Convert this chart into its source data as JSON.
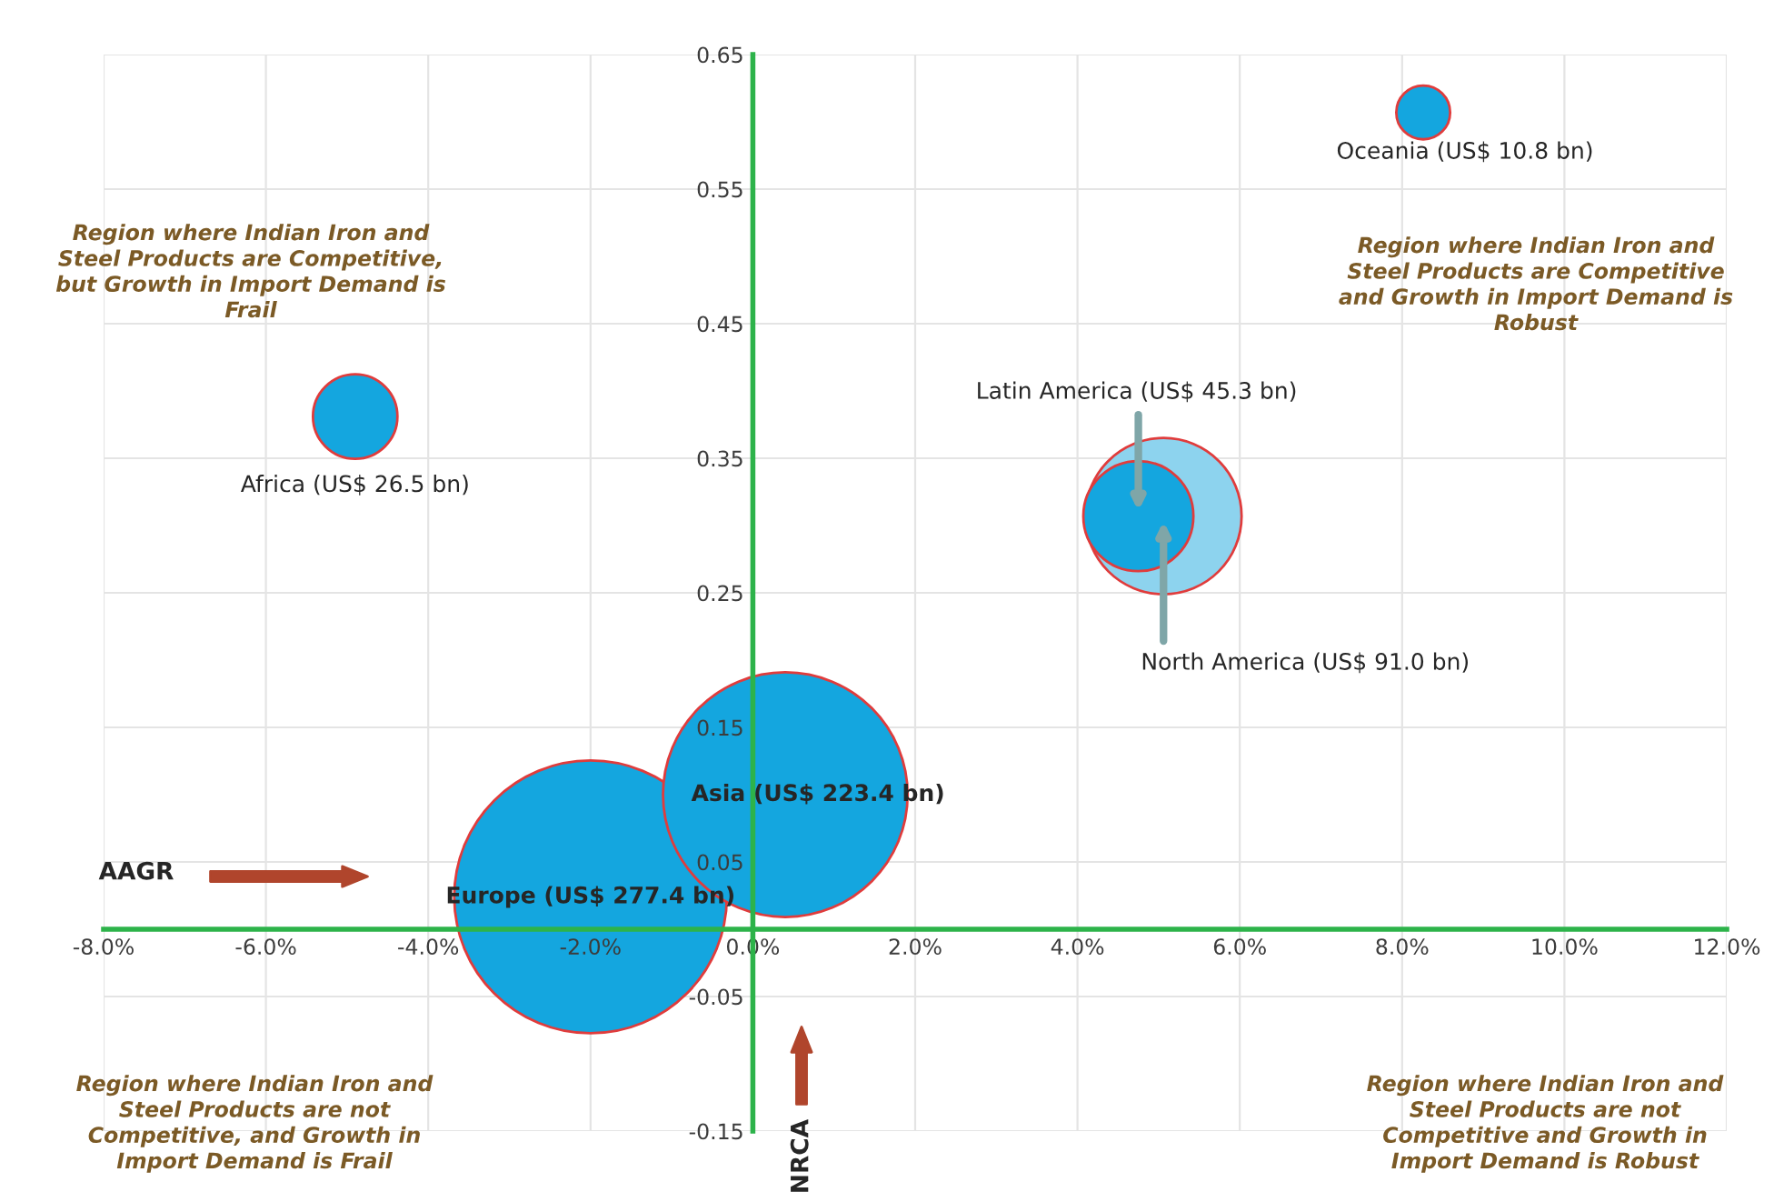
{
  "chart_data": {
    "type": "bubble",
    "xlabel": "AAGR",
    "ylabel": "NRCA",
    "xlim": [
      -8,
      12
    ],
    "xticks": [
      {
        "value": -8,
        "label": "-8.0%"
      },
      {
        "value": -6,
        "label": "-6.0%"
      },
      {
        "value": -4,
        "label": "-4.0%"
      },
      {
        "value": -2,
        "label": "-2.0%"
      },
      {
        "value": 0,
        "label": "0.0%"
      },
      {
        "value": 2,
        "label": "2.0%"
      },
      {
        "value": 4,
        "label": "4.0%"
      },
      {
        "value": 6,
        "label": "6.0%"
      },
      {
        "value": 8,
        "label": "8.0%"
      },
      {
        "value": 10,
        "label": "10.0%"
      },
      {
        "value": 12,
        "label": "12.0%"
      }
    ],
    "ylim": [
      -0.15,
      0.65
    ],
    "yticks": [
      -0.15,
      -0.05,
      0.05,
      0.15,
      0.25,
      0.35,
      0.45,
      0.55,
      0.65
    ],
    "grid": true,
    "series": [
      {
        "name": "Africa (US$ 26.5 bn)",
        "color": "#14a6df",
        "x": [
          -4.9
        ],
        "values": [
          0.381
        ],
        "sizes": [
          0.096
        ]
      },
      {
        "name": "Europe (US$ 277.4 bn)",
        "color": "#14a6df",
        "x": [
          -2.0
        ],
        "values": [
          0.024
        ],
        "sizes": [
          1
        ]
      },
      {
        "name": "Asia (US$ 223.4 bn)",
        "color": "#14a6df",
        "x": [
          0.4
        ],
        "values": [
          0.1
        ],
        "sizes": [
          0.805
        ]
      },
      {
        "name": "North America (US$ 91.0 bn)",
        "color": "#8dd3ee",
        "x": [
          5.06
        ],
        "values": [
          0.307
        ],
        "sizes": [
          0.328
        ]
      },
      {
        "name": "Latin America (US$ 45.3 bn)",
        "color": "#14a6df",
        "x": [
          4.75
        ],
        "values": [
          0.307
        ],
        "sizes": [
          0.163
        ]
      },
      {
        "name": "Oceania (US$ 10.8 bn)",
        "color": "#14a6df",
        "x": [
          8.26
        ],
        "values": [
          0.607
        ],
        "sizes": [
          0.039
        ]
      }
    ],
    "annotations": [
      "Region where Indian Iron and Steel Products are Competitive, but Growth in Import Demand is Frail",
      "Region where Indian Iron and Steel Products are Competitive and Growth in Import Demand is Robust",
      "Region where Indian Iron and Steel Products are not Competitive, and Growth in Import Demand is Frail",
      "Region where Indian Iron and Steel Products are not Competitive and Growth in Import Demand is Robust"
    ]
  }
}
